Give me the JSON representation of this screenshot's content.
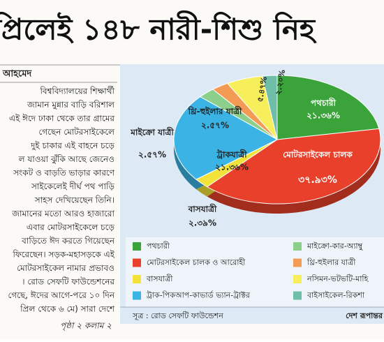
{
  "headline": "প্রিলেই ১৪৮ নারী-শিশু নিহ",
  "byline": "আহমেদ",
  "article": [
    "বিশ্ববিদ্যালয়ের শিক্ষার্থী",
    "জামান মুন্নার বাড়ি বরিশাল",
    "এই ঈদে ঢাকা থেকে তার গ্রামের",
    "গেছেন মোটরসাইকেলে",
    "দুই চাকার এই বাহনে চড়ে",
    "ল যাওয়া ঝুঁকি আছে জেনেও",
    "সংকট ও বাড়তি ভাড়ার কারণে",
    "সাইকেলেই দীর্ঘ পথ পাড়ি",
    "সাহস দেখিয়েছেন তিনি।",
    "জামানের মতো আরও হাজারো",
    "এবার মোটরসাইকেলে চড়ে",
    "বাড়িতে ঈদ করতে গিয়েছেন",
    "ফিরেছেন। সড়ক-মহাসড়কে এই",
    "মোটরসাইকেল নামার প্রভাবও",
    "। রোড সেফটি ফাউন্ডেশনের",
    "গেছে, ঈদের আগে-পরে ১০ দিন",
    "প্রিল থেকে ৬ মে) সারা দেশে"
  ],
  "continued": "পৃষ্ঠা ২ কলাম ২",
  "chart_data": {
    "type": "pie",
    "categories": [
      "পথচারী",
      "মোটরসাইকেল চালক ও আরোহী",
      "বাসযাত্রী",
      "ট্রাক-পিকআপ-কাভার্ড ভ্যান-ট্রাক্টর",
      "মাইক্রো-কার-অ্যাম্বু",
      "থ্রি-হুইলার যাত্রী",
      "নসিমন-ভটভটি-মাহি",
      "বাইসাইকেল-রিকশা"
    ],
    "labels": [
      "পথচারী",
      "মোটরসাইকেল চালক",
      "বাসযাত্রী",
      "ট্রাকযাত্রী",
      "মাইক্রো যাত্রী",
      "থ্রি-হুইলার যাত্রী",
      null,
      null
    ],
    "values": [
      21.36,
      37.93,
      2.39,
      21.36,
      2.57,
      2.57,
      5.47,
      2.2
    ],
    "value_labels": [
      "২১.৩৬%",
      "৩৭.৯৩%",
      "২.৩৯%",
      "২১.৩৬%",
      "২.৫৭%",
      "২.৫৭%",
      "৫.৪৭%",
      "২.২০%"
    ],
    "colors": [
      "#3aa43a",
      "#e8402a",
      "#f2e33a",
      "#3bb4e5",
      "#8ccf8a",
      "#f39a55",
      "#f6ee5a",
      "#6fbfa8"
    ],
    "source": "সূত্র : রোড সেফটি ফাউন্ডেশন",
    "publisher": "দেশ রূপান্তর"
  }
}
